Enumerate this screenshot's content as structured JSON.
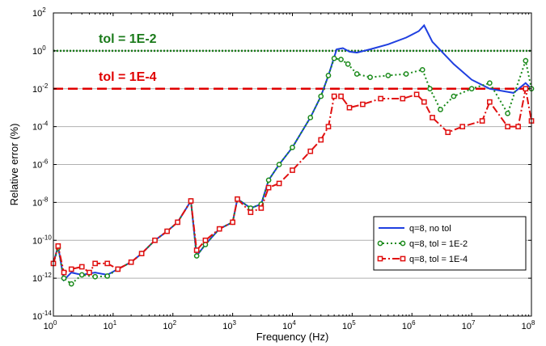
{
  "chart_data": {
    "type": "line",
    "xlabel": "Frequency (Hz)",
    "ylabel": "Relative error (%)",
    "xscale": "log",
    "yscale": "log",
    "xlim": [
      1,
      100000000
    ],
    "ylim": [
      1e-14,
      100
    ],
    "grid": "horizontal",
    "legend_position": "lower-right",
    "x_ticks": [
      {
        "base": "10",
        "exp": "0",
        "value": 1
      },
      {
        "base": "10",
        "exp": "1",
        "value": 10
      },
      {
        "base": "10",
        "exp": "2",
        "value": 100
      },
      {
        "base": "10",
        "exp": "3",
        "value": 1000
      },
      {
        "base": "10",
        "exp": "4",
        "value": 10000
      },
      {
        "base": "10",
        "exp": "5",
        "value": 100000
      },
      {
        "base": "10",
        "exp": "6",
        "value": 1000000
      },
      {
        "base": "10",
        "exp": "7",
        "value": 10000000
      },
      {
        "base": "10",
        "exp": "8",
        "value": 100000000
      }
    ],
    "y_ticks": [
      {
        "base": "10",
        "exp": "-14",
        "value": 1e-14
      },
      {
        "base": "10",
        "exp": "-12",
        "value": 1e-12
      },
      {
        "base": "10",
        "exp": "-10",
        "value": 1e-10
      },
      {
        "base": "10",
        "exp": "-8",
        "value": 1e-08
      },
      {
        "base": "10",
        "exp": "-6",
        "value": 1e-06
      },
      {
        "base": "10",
        "exp": "-4",
        "value": 0.0001
      },
      {
        "base": "10",
        "exp": "-2",
        "value": 0.01
      },
      {
        "base": "10",
        "exp": "0",
        "value": 1
      },
      {
        "base": "10",
        "exp": "2",
        "value": 100
      }
    ],
    "annotations": [
      {
        "text": "tol = 1E-2",
        "y": 1,
        "color": "#1a7a1a",
        "style": "dotted"
      },
      {
        "text": "tol = 1E-4",
        "y": 0.01,
        "color": "#e00000",
        "style": "dashed"
      }
    ],
    "series": [
      {
        "name": "q=8, no tol",
        "color": "#1f3fe0",
        "style": "solid",
        "marker": "none",
        "points": [
          [
            1,
            6e-12
          ],
          [
            1.2,
            5e-11
          ],
          [
            1.5,
            8e-13
          ],
          [
            2,
            2e-12
          ],
          [
            3,
            1.5e-12
          ],
          [
            5,
            2e-12
          ],
          [
            8,
            1.5e-12
          ],
          [
            12,
            3e-12
          ],
          [
            20,
            7e-12
          ],
          [
            30,
            2e-11
          ],
          [
            50,
            1e-10
          ],
          [
            80,
            3e-10
          ],
          [
            120,
            9e-10
          ],
          [
            200,
            1.2e-08
          ],
          [
            250,
            1.5e-11
          ],
          [
            350,
            6e-11
          ],
          [
            600,
            4e-10
          ],
          [
            1000,
            9e-10
          ],
          [
            1200,
            1.5e-08
          ],
          [
            2000,
            5e-09
          ],
          [
            3000,
            8e-09
          ],
          [
            4000,
            1.5e-07
          ],
          [
            6000,
            1e-06
          ],
          [
            10000,
            8e-06
          ],
          [
            20000,
            0.0003
          ],
          [
            30000,
            0.004
          ],
          [
            40000,
            0.05
          ],
          [
            55000,
            1.2
          ],
          [
            70000,
            1.4
          ],
          [
            90000,
            0.9
          ],
          [
            120000,
            0.8
          ],
          [
            200000,
            1.2
          ],
          [
            400000,
            2.2
          ],
          [
            800000,
            5
          ],
          [
            1300000,
            11
          ],
          [
            1600000,
            22
          ],
          [
            2200000,
            3
          ],
          [
            5000000,
            0.2
          ],
          [
            10000000,
            0.03
          ],
          [
            20000000,
            0.01
          ],
          [
            50000000,
            0.006
          ],
          [
            80000000,
            0.02
          ],
          [
            100000000,
            0.01
          ]
        ]
      },
      {
        "name": "q=8, tol = 1E-2",
        "color": "#1a8a1a",
        "style": "dotted",
        "marker": "circle",
        "points": [
          [
            1,
            6e-12
          ],
          [
            1.2,
            4e-11
          ],
          [
            1.5,
            1e-12
          ],
          [
            2,
            5e-13
          ],
          [
            3,
            1.5e-12
          ],
          [
            5,
            1.2e-12
          ],
          [
            8,
            1.3e-12
          ],
          [
            12,
            3e-12
          ],
          [
            20,
            7e-12
          ],
          [
            30,
            2e-11
          ],
          [
            50,
            1e-10
          ],
          [
            80,
            3e-10
          ],
          [
            120,
            9e-10
          ],
          [
            200,
            1.2e-08
          ],
          [
            250,
            1.5e-11
          ],
          [
            350,
            6e-11
          ],
          [
            600,
            4e-10
          ],
          [
            1000,
            9e-10
          ],
          [
            1200,
            1.5e-08
          ],
          [
            2000,
            5e-09
          ],
          [
            3000,
            8e-09
          ],
          [
            4000,
            1.5e-07
          ],
          [
            6000,
            1e-06
          ],
          [
            10000,
            8e-06
          ],
          [
            20000,
            0.0003
          ],
          [
            30000,
            0.004
          ],
          [
            40000,
            0.05
          ],
          [
            50000,
            0.4
          ],
          [
            65000,
            0.35
          ],
          [
            85000,
            0.2
          ],
          [
            120000,
            0.06
          ],
          [
            200000,
            0.04
          ],
          [
            400000,
            0.05
          ],
          [
            800000,
            0.06
          ],
          [
            1500000,
            0.1
          ],
          [
            2000000,
            0.01
          ],
          [
            3000000,
            0.0008
          ],
          [
            5000000,
            0.004
          ],
          [
            10000000,
            0.01
          ],
          [
            20000000,
            0.02
          ],
          [
            40000000,
            0.0005
          ],
          [
            80000000,
            0.3
          ],
          [
            100000000,
            0.01
          ]
        ]
      },
      {
        "name": "q=8, tol = 1E-4",
        "color": "#e01010",
        "style": "dashdot",
        "marker": "square",
        "points": [
          [
            1,
            6e-12
          ],
          [
            1.2,
            5e-11
          ],
          [
            1.5,
            2e-12
          ],
          [
            2,
            3e-12
          ],
          [
            3,
            4e-12
          ],
          [
            4,
            2e-12
          ],
          [
            5,
            6e-12
          ],
          [
            8,
            6e-12
          ],
          [
            12,
            3e-12
          ],
          [
            20,
            7e-12
          ],
          [
            30,
            2e-11
          ],
          [
            50,
            1e-10
          ],
          [
            80,
            3e-10
          ],
          [
            120,
            9e-10
          ],
          [
            200,
            1.2e-08
          ],
          [
            250,
            3e-11
          ],
          [
            350,
            1e-10
          ],
          [
            600,
            4e-10
          ],
          [
            1000,
            9e-10
          ],
          [
            1200,
            1.5e-08
          ],
          [
            2000,
            3e-09
          ],
          [
            3000,
            5e-09
          ],
          [
            4000,
            6e-08
          ],
          [
            6000,
            1e-07
          ],
          [
            10000,
            5e-07
          ],
          [
            20000,
            5e-06
          ],
          [
            30000,
            2e-05
          ],
          [
            40000,
            0.0001
          ],
          [
            50000,
            0.004
          ],
          [
            65000,
            0.004
          ],
          [
            90000,
            0.001
          ],
          [
            150000,
            0.0015
          ],
          [
            300000,
            0.003
          ],
          [
            700000,
            0.003
          ],
          [
            1200000,
            0.005
          ],
          [
            1600000,
            0.002
          ],
          [
            2200000,
            0.0003
          ],
          [
            4000000,
            5e-05
          ],
          [
            7000000,
            0.0001
          ],
          [
            15000000,
            0.0002
          ],
          [
            20000000,
            0.002
          ],
          [
            40000000,
            0.0001
          ],
          [
            60000000,
            0.0001
          ],
          [
            80000000,
            0.01
          ],
          [
            100000000,
            0.0002
          ]
        ]
      }
    ]
  }
}
